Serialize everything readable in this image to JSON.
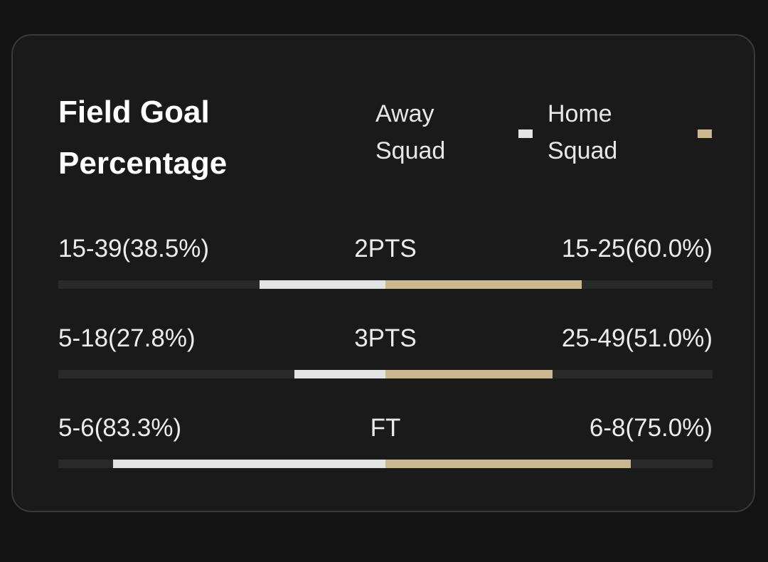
{
  "card": {
    "title": "Field Goal Percentage"
  },
  "legend": {
    "away": {
      "label": "Away Squad",
      "color": "#e4e4e4"
    },
    "home": {
      "label": "Home Squad",
      "color": "#cbb88f"
    }
  },
  "stats": [
    {
      "label": "2PTS",
      "away_text": "15-39(38.5%)",
      "home_text": "15-25(60.0%)",
      "away_pct": 38.5,
      "home_pct": 60.0
    },
    {
      "label": "3PTS",
      "away_text": "5-18(27.8%)",
      "home_text": "25-49(51.0%)",
      "away_pct": 27.8,
      "home_pct": 51.0
    },
    {
      "label": "FT",
      "away_text": "5-6(83.3%)",
      "home_text": "6-8(75.0%)",
      "away_pct": 83.3,
      "home_pct": 75.0
    }
  ]
}
